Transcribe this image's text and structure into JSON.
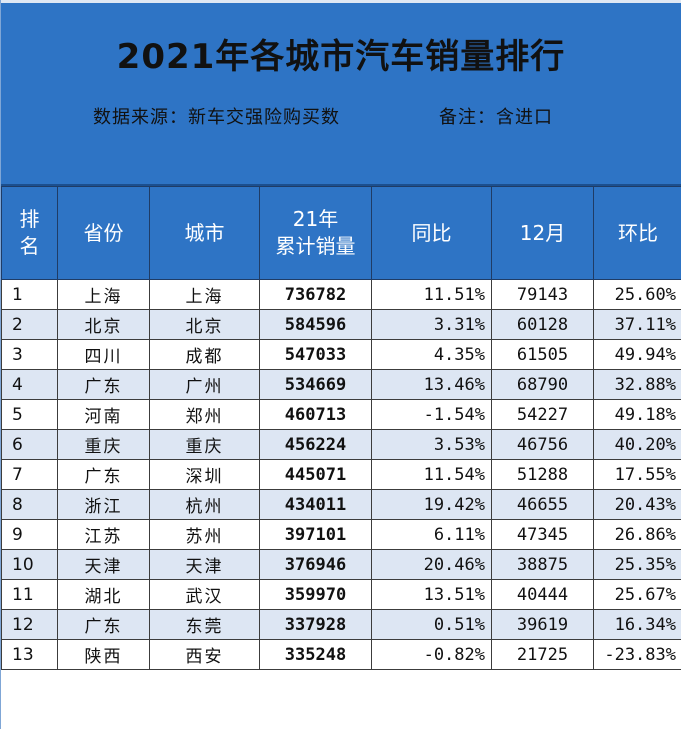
{
  "header": {
    "title": "2021年各城市汽车销量排行",
    "source": "数据来源：新车交强险购买数",
    "note": "备注：含进口"
  },
  "columns": {
    "rank": "排\n名",
    "province": "省份",
    "city": "城市",
    "total": "21年\n累计销量",
    "yoy": "同比",
    "dec": "12月",
    "mom": "环比"
  },
  "rows": [
    {
      "rank": "1",
      "province": "上海",
      "city": "上海",
      "total": "736782",
      "yoy": "11.51%",
      "dec": "79143",
      "mom": "25.60%"
    },
    {
      "rank": "2",
      "province": "北京",
      "city": "北京",
      "total": "584596",
      "yoy": "3.31%",
      "dec": "60128",
      "mom": "37.11%"
    },
    {
      "rank": "3",
      "province": "四川",
      "city": "成都",
      "total": "547033",
      "yoy": "4.35%",
      "dec": "61505",
      "mom": "49.94%"
    },
    {
      "rank": "4",
      "province": "广东",
      "city": "广州",
      "total": "534669",
      "yoy": "13.46%",
      "dec": "68790",
      "mom": "32.88%"
    },
    {
      "rank": "5",
      "province": "河南",
      "city": "郑州",
      "total": "460713",
      "yoy": "-1.54%",
      "dec": "54227",
      "mom": "49.18%"
    },
    {
      "rank": "6",
      "province": "重庆",
      "city": "重庆",
      "total": "456224",
      "yoy": "3.53%",
      "dec": "46756",
      "mom": "40.20%"
    },
    {
      "rank": "7",
      "province": "广东",
      "city": "深圳",
      "total": "445071",
      "yoy": "11.54%",
      "dec": "51288",
      "mom": "17.55%"
    },
    {
      "rank": "8",
      "province": "浙江",
      "city": "杭州",
      "total": "434011",
      "yoy": "19.42%",
      "dec": "46655",
      "mom": "20.43%"
    },
    {
      "rank": "9",
      "province": "江苏",
      "city": "苏州",
      "total": "397101",
      "yoy": "6.11%",
      "dec": "47345",
      "mom": "26.86%"
    },
    {
      "rank": "10",
      "province": "天津",
      "city": "天津",
      "total": "376946",
      "yoy": "20.46%",
      "dec": "38875",
      "mom": "25.35%"
    },
    {
      "rank": "11",
      "province": "湖北",
      "city": "武汉",
      "total": "359970",
      "yoy": "13.51%",
      "dec": "40444",
      "mom": "25.67%"
    },
    {
      "rank": "12",
      "province": "广东",
      "city": "东莞",
      "total": "337928",
      "yoy": "0.51%",
      "dec": "39619",
      "mom": "16.34%"
    },
    {
      "rank": "13",
      "province": "陕西",
      "city": "西安",
      "total": "335248",
      "yoy": "-0.82%",
      "dec": "21725",
      "mom": "-23.83%"
    }
  ]
}
